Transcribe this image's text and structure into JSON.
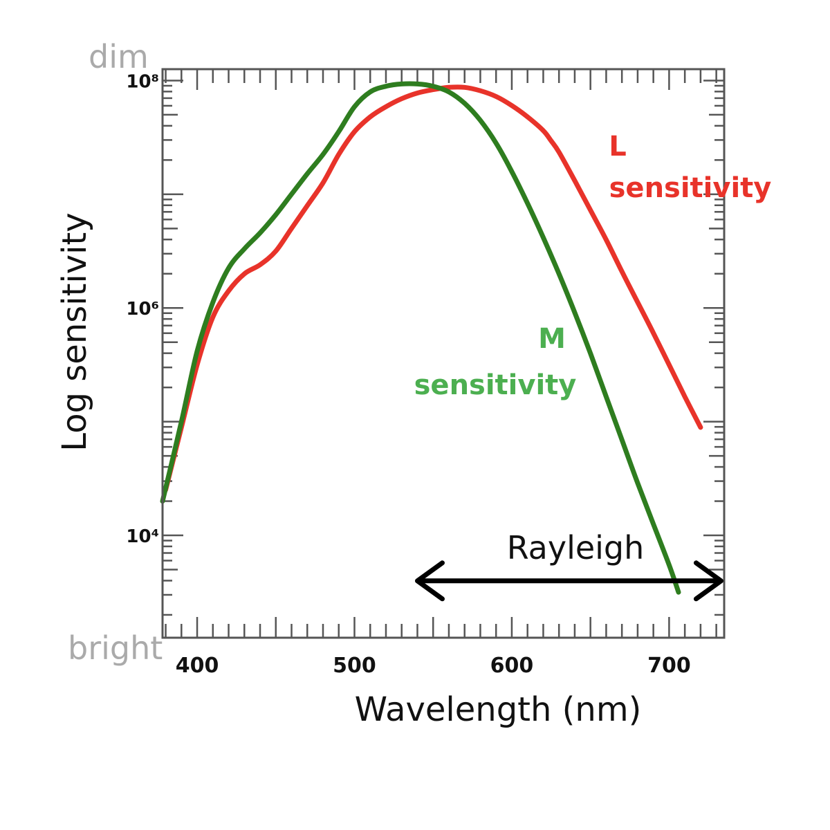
{
  "chart_data": {
    "type": "line",
    "title": "",
    "xlabel": "Wavelength (nm)",
    "ylabel": "Log sensitivity",
    "xlim": [
      378,
      735
    ],
    "ylim": [
      3.1,
      8.1
    ],
    "log_y": true,
    "x_ticks": [
      {
        "value": 400,
        "label": "400"
      },
      {
        "value": 500,
        "label": "500"
      },
      {
        "value": 600,
        "label": "600"
      },
      {
        "value": 700,
        "label": "700"
      }
    ],
    "y_ticks": [
      {
        "value": 4,
        "label": "10⁴"
      },
      {
        "value": 6,
        "label": "10⁶"
      },
      {
        "value": 8,
        "label": "10⁸"
      }
    ],
    "top_label": "dim",
    "bottom_label": "bright",
    "series": [
      {
        "name": "L sensitivity",
        "label_line1": "L",
        "label_line2": "sensitivity",
        "color": "#e8332a",
        "x": [
          380,
          390,
          400,
          410,
          420,
          430,
          440,
          450,
          460,
          470,
          480,
          490,
          500,
          510,
          520,
          530,
          540,
          550,
          560,
          570,
          580,
          590,
          600,
          610,
          620,
          625,
          630,
          640,
          650,
          660,
          670,
          680,
          690,
          700,
          710,
          720
        ],
        "y": [
          4.4,
          4.95,
          5.5,
          5.92,
          6.15,
          6.3,
          6.38,
          6.5,
          6.7,
          6.9,
          7.1,
          7.35,
          7.55,
          7.68,
          7.77,
          7.84,
          7.89,
          7.92,
          7.94,
          7.94,
          7.91,
          7.86,
          7.78,
          7.68,
          7.56,
          7.47,
          7.37,
          7.12,
          6.86,
          6.6,
          6.32,
          6.05,
          5.78,
          5.5,
          5.22,
          4.95
        ]
      },
      {
        "name": "M sensitivity",
        "label_line1": "M",
        "label_line2": "sensitivity",
        "color": "#2e7d1f",
        "x": [
          378,
          390,
          400,
          410,
          420,
          430,
          440,
          450,
          460,
          470,
          480,
          490,
          500,
          510,
          520,
          530,
          540,
          550,
          560,
          570,
          580,
          590,
          600,
          610,
          620,
          630,
          640,
          650,
          660,
          670,
          680,
          690,
          700,
          706
        ],
        "y": [
          4.3,
          5.0,
          5.62,
          6.05,
          6.35,
          6.52,
          6.66,
          6.82,
          7.0,
          7.18,
          7.35,
          7.55,
          7.77,
          7.9,
          7.95,
          7.97,
          7.97,
          7.95,
          7.9,
          7.8,
          7.65,
          7.45,
          7.2,
          6.92,
          6.62,
          6.3,
          5.96,
          5.6,
          5.22,
          4.84,
          4.46,
          4.1,
          3.74,
          3.5
        ]
      }
    ],
    "annotation": {
      "text": "Rayleigh",
      "x_start": 540,
      "x_end": 733,
      "y": 3.6
    }
  }
}
